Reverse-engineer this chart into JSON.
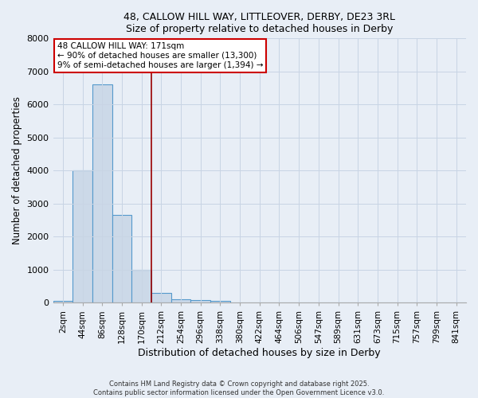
{
  "title1": "48, CALLOW HILL WAY, LITTLEOVER, DERBY, DE23 3RL",
  "title2": "Size of property relative to detached houses in Derby",
  "xlabel": "Distribution of detached houses by size in Derby",
  "ylabel": "Number of detached properties",
  "bar_labels": [
    "2sqm",
    "44sqm",
    "86sqm",
    "128sqm",
    "170sqm",
    "212sqm",
    "254sqm",
    "296sqm",
    "338sqm",
    "380sqm",
    "422sqm",
    "464sqm",
    "506sqm",
    "547sqm",
    "589sqm",
    "631sqm",
    "673sqm",
    "715sqm",
    "757sqm",
    "799sqm",
    "841sqm"
  ],
  "bar_values": [
    50,
    4000,
    6600,
    2650,
    1000,
    300,
    100,
    80,
    50,
    0,
    0,
    0,
    0,
    0,
    0,
    0,
    0,
    0,
    0,
    0,
    0
  ],
  "bar_color": "#ccd9e8",
  "bar_edge_color": "#5599cc",
  "vline_x_index": 4.5,
  "vline_color": "#990000",
  "annotation_line1": "48 CALLOW HILL WAY: 171sqm",
  "annotation_line2": "← 90% of detached houses are smaller (13,300)",
  "annotation_line3": "9% of semi-detached houses are larger (1,394) →",
  "annotation_box_color": "#cc0000",
  "annotation_bg": "#ffffff",
  "ylim": [
    0,
    8000
  ],
  "yticks": [
    0,
    1000,
    2000,
    3000,
    4000,
    5000,
    6000,
    7000,
    8000
  ],
  "grid_color": "#c8d4e4",
  "bg_color": "#e8eef6",
  "footer1": "Contains HM Land Registry data © Crown copyright and database right 2025.",
  "footer2": "Contains public sector information licensed under the Open Government Licence v3.0."
}
